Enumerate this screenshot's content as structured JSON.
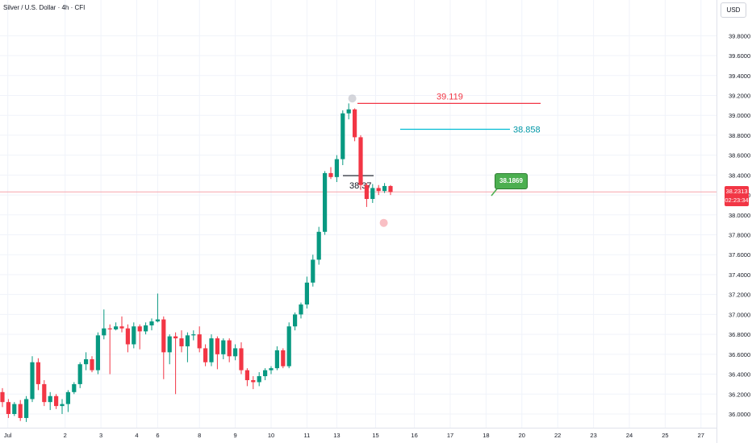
{
  "header": {
    "title": "Silver / U.S. Dollar · 4h · CFI",
    "currency": "USD"
  },
  "price_tag": {
    "price": "38.2313",
    "countdown": "02:23:34"
  },
  "colors": {
    "up": "#089981",
    "down": "#f23645",
    "cyan": "#00bcd4",
    "green_box": "#4caf50",
    "grid": "#f0f3fa"
  },
  "chart_data": {
    "type": "candlestick",
    "y_ticks": [
      "36.0000",
      "36.2000",
      "36.4000",
      "36.6000",
      "36.8000",
      "37.0000",
      "37.2000",
      "37.4000",
      "37.6000",
      "37.8000",
      "38.0000",
      "38.2000",
      "38.4000",
      "38.6000",
      "38.8000",
      "39.0000",
      "39.2000",
      "39.4000",
      "39.6000",
      "39.8000"
    ],
    "ylim": [
      35.96,
      40.0
    ],
    "x_ticks": [
      {
        "label": "Jul",
        "pos": 0.9
      },
      {
        "label": "2",
        "pos": 10.5
      },
      {
        "label": "3",
        "pos": 16.5
      },
      {
        "label": "4",
        "pos": 22.5
      },
      {
        "label": "6",
        "pos": 26
      },
      {
        "label": "8",
        "pos": 33
      },
      {
        "label": "9",
        "pos": 39
      },
      {
        "label": "10",
        "pos": 45
      },
      {
        "label": "11",
        "pos": 51
      },
      {
        "label": "13",
        "pos": 56
      },
      {
        "label": "15",
        "pos": 62.5
      },
      {
        "label": "16",
        "pos": 69
      },
      {
        "label": "17",
        "pos": 75
      },
      {
        "label": "18",
        "pos": 81
      },
      {
        "label": "20",
        "pos": 87
      },
      {
        "label": "22",
        "pos": 93
      },
      {
        "label": "23",
        "pos": 99
      },
      {
        "label": "24",
        "pos": 105
      },
      {
        "label": "25",
        "pos": 111
      },
      {
        "label": "27",
        "pos": 117
      }
    ],
    "candles": [
      [
        36.22,
        36.26,
        36.07,
        36.12
      ],
      [
        36.12,
        36.15,
        35.96,
        36.0
      ],
      [
        36.0,
        36.12,
        35.98,
        36.1
      ],
      [
        36.1,
        36.14,
        35.93,
        35.96
      ],
      [
        35.96,
        36.18,
        35.92,
        36.15
      ],
      [
        36.15,
        36.58,
        36.12,
        36.52
      ],
      [
        36.52,
        36.56,
        36.24,
        36.3
      ],
      [
        36.3,
        36.34,
        36.08,
        36.12
      ],
      [
        36.12,
        36.22,
        36.04,
        36.18
      ],
      [
        36.18,
        36.2,
        36.05,
        36.08
      ],
      [
        36.08,
        36.15,
        36.0,
        36.1
      ],
      [
        36.1,
        36.24,
        36.02,
        36.22
      ],
      [
        36.22,
        36.32,
        36.2,
        36.3
      ],
      [
        36.3,
        36.52,
        36.26,
        36.5
      ],
      [
        36.5,
        36.62,
        36.44,
        36.55
      ],
      [
        36.55,
        36.58,
        36.42,
        36.44
      ],
      [
        36.44,
        36.82,
        36.4,
        36.79
      ],
      [
        36.79,
        37.05,
        36.75,
        36.86
      ],
      [
        36.86,
        36.9,
        36.4,
        36.85
      ],
      [
        36.85,
        36.92,
        36.84,
        36.88
      ],
      [
        36.88,
        36.98,
        36.82,
        36.86
      ],
      [
        36.86,
        36.9,
        36.62,
        36.7
      ],
      [
        36.7,
        36.92,
        36.66,
        36.88
      ],
      [
        36.88,
        36.9,
        36.65,
        36.83
      ],
      [
        36.83,
        36.92,
        36.8,
        36.89
      ],
      [
        36.89,
        36.96,
        36.84,
        36.93
      ],
      [
        36.93,
        37.21,
        36.92,
        36.95
      ],
      [
        36.95,
        36.98,
        36.35,
        36.62
      ],
      [
        36.62,
        36.8,
        36.5,
        36.78
      ],
      [
        36.78,
        36.82,
        36.2,
        36.76
      ],
      [
        36.76,
        36.84,
        36.62,
        36.68
      ],
      [
        36.68,
        36.82,
        36.52,
        36.79
      ],
      [
        36.79,
        36.84,
        36.74,
        36.8
      ],
      [
        36.8,
        36.88,
        36.62,
        36.66
      ],
      [
        36.66,
        36.7,
        36.48,
        36.52
      ],
      [
        36.52,
        36.8,
        36.48,
        36.76
      ],
      [
        36.76,
        36.78,
        36.45,
        36.6
      ],
      [
        36.6,
        36.76,
        36.55,
        36.74
      ],
      [
        36.74,
        36.76,
        36.52,
        36.58
      ],
      [
        36.58,
        36.7,
        36.54,
        36.66
      ],
      [
        36.66,
        36.72,
        36.4,
        36.44
      ],
      [
        36.44,
        36.46,
        36.28,
        36.34
      ],
      [
        36.34,
        36.38,
        36.25,
        36.32
      ],
      [
        36.32,
        36.42,
        36.28,
        36.38
      ],
      [
        36.38,
        36.46,
        36.34,
        36.44
      ],
      [
        36.44,
        36.48,
        36.4,
        36.46
      ],
      [
        36.46,
        36.68,
        36.44,
        36.64
      ],
      [
        36.64,
        36.66,
        36.46,
        36.48
      ],
      [
        36.48,
        36.92,
        36.46,
        36.88
      ],
      [
        36.88,
        37.02,
        36.84,
        37.0
      ],
      [
        37.0,
        37.12,
        36.96,
        37.1
      ],
      [
        37.1,
        37.38,
        37.06,
        37.32
      ],
      [
        37.32,
        37.6,
        37.28,
        37.55
      ],
      [
        37.55,
        37.88,
        37.5,
        37.83
      ],
      [
        37.83,
        38.44,
        37.8,
        38.42
      ],
      [
        38.42,
        38.48,
        38.36,
        38.38
      ],
      [
        38.38,
        38.6,
        38.33,
        38.56
      ],
      [
        38.56,
        39.05,
        38.5,
        39.02
      ],
      [
        39.02,
        39.12,
        38.96,
        39.06
      ],
      [
        39.06,
        39.07,
        38.74,
        38.78
      ],
      [
        38.78,
        38.8,
        38.25,
        38.3
      ],
      [
        38.3,
        38.32,
        38.08,
        38.16
      ],
      [
        38.16,
        38.31,
        38.12,
        38.27
      ],
      [
        38.27,
        38.3,
        38.2,
        38.24
      ],
      [
        38.24,
        38.32,
        38.22,
        38.29
      ],
      [
        38.29,
        38.3,
        38.2,
        38.23
      ]
    ],
    "annotations": {
      "red_line": {
        "price": 39.12,
        "label": "39.119"
      },
      "cyan_line": {
        "price": 38.86,
        "label": "38.858"
      },
      "black_line": {
        "price": 38.37,
        "label": "38.37"
      },
      "green_box": {
        "label": "38.1869"
      },
      "current_price": 38.2313
    }
  }
}
